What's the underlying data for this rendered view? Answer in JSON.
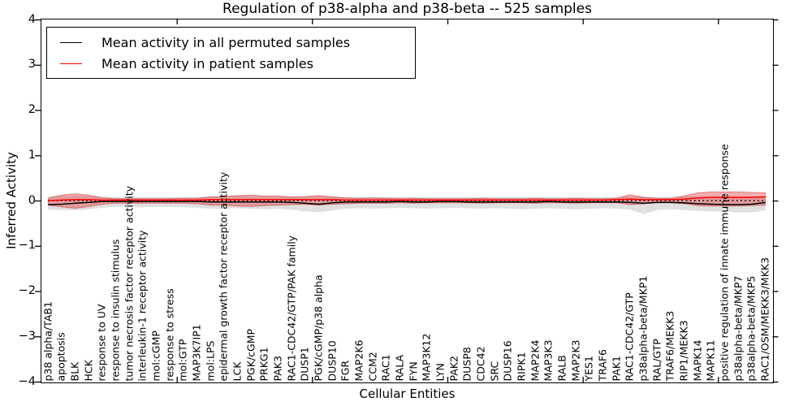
{
  "legend": {
    "entries": [
      {
        "label": "Mean activity in all permuted samples",
        "color": "#000000"
      },
      {
        "label": "Mean activity in patient samples",
        "color": "#ff0000"
      }
    ]
  },
  "chart_data": {
    "type": "line",
    "title": "Regulation of p38-alpha and p38-beta -- 525 samples",
    "xlabel": "Cellular Entities",
    "ylabel": "Inferred Activity",
    "ylim": [
      -4,
      4
    ],
    "yticks": [
      4,
      3,
      2,
      1,
      0,
      -1,
      -2,
      -3,
      -4
    ],
    "ytick_labels": [
      "4",
      "3",
      "2",
      "1",
      "0",
      "−1",
      "−2",
      "−3",
      "−4"
    ],
    "xtick_marks_at": [
      10,
      20,
      30,
      40,
      50
    ],
    "grid": false,
    "legend_position": "upper left",
    "categories": [
      "p38 alpha/TAB1",
      "apoptosis",
      "BLK",
      "HCK",
      "response to UV",
      "response to insulin stimulus",
      "tumor necrosis factor receptor activity",
      "interleukin-1 receptor activity",
      "mol:cGMP",
      "response to stress",
      "mol:GTP",
      "MAP3K7IP1",
      "mol:LPS",
      "epidermal growth factor receptor activity",
      "LCK",
      "PGK/cGMP",
      "PRKG1",
      "PAK3",
      "RAC1-CDC42/GTP/PAK family",
      "DUSP1",
      "PGK/cGMP/p38 alpha",
      "DUSP10",
      "FGR",
      "MAP2K6",
      "CCM2",
      "RAC1",
      "RALA",
      "FYN",
      "MAP3K12",
      "LYN",
      "PAK2",
      "DUSP8",
      "CDC42",
      "SRC",
      "DUSP16",
      "RIPK1",
      "MAP2K4",
      "MAP3K3",
      "RALB",
      "MAP2K3",
      "YES1",
      "TRAF6",
      "PAK1",
      "RAC1-CDC42/GTP",
      "p38alpha-beta/MKP1",
      "RAL/GTP",
      "TRAF6/MEKK3",
      "RIP1/MEKK3",
      "MAPK14",
      "MAPK11",
      "positive regulation of innate immune response",
      "p38alpha-beta/MKP7",
      "p38alpha-beta/MKP5",
      "RAC1/OSM/MEKK3/MKK3"
    ],
    "zero_line": {
      "y": 0,
      "style": "dotted",
      "color": "#000000"
    },
    "series": [
      {
        "name": "Mean activity in all permuted samples",
        "color": "#000000",
        "band_color": "rgba(0,0,0,0.12)",
        "band_edge": "none",
        "values": [
          -0.09,
          -0.08,
          -0.06,
          -0.04,
          -0.02,
          -0.02,
          -0.02,
          -0.02,
          -0.02,
          -0.02,
          -0.02,
          -0.02,
          -0.03,
          -0.03,
          -0.03,
          -0.03,
          -0.03,
          -0.03,
          -0.04,
          -0.06,
          -0.08,
          -0.05,
          -0.03,
          -0.03,
          -0.03,
          -0.03,
          -0.02,
          -0.03,
          -0.03,
          -0.02,
          -0.02,
          -0.03,
          -0.03,
          -0.03,
          -0.03,
          -0.03,
          -0.03,
          -0.02,
          -0.03,
          -0.03,
          -0.03,
          -0.03,
          -0.03,
          -0.04,
          -0.06,
          -0.04,
          -0.04,
          -0.05,
          -0.07,
          -0.08,
          -0.09,
          -0.09,
          -0.08,
          -0.04
        ],
        "band_upper": [
          0.1,
          0.1,
          0.11,
          0.1,
          0.09,
          0.08,
          0.08,
          0.08,
          0.08,
          0.08,
          0.08,
          0.08,
          0.09,
          0.09,
          0.1,
          0.1,
          0.09,
          0.09,
          0.08,
          0.09,
          0.1,
          0.09,
          0.08,
          0.08,
          0.08,
          0.08,
          0.08,
          0.08,
          0.08,
          0.08,
          0.08,
          0.08,
          0.08,
          0.08,
          0.08,
          0.08,
          0.08,
          0.08,
          0.08,
          0.08,
          0.08,
          0.08,
          0.08,
          0.09,
          0.09,
          0.08,
          0.08,
          0.09,
          0.1,
          0.1,
          0.1,
          0.1,
          0.1,
          0.1
        ],
        "band_lower": [
          -0.2,
          -0.21,
          -0.22,
          -0.19,
          -0.16,
          -0.14,
          -0.14,
          -0.15,
          -0.14,
          -0.14,
          -0.15,
          -0.16,
          -0.18,
          -0.18,
          -0.17,
          -0.18,
          -0.19,
          -0.18,
          -0.2,
          -0.24,
          -0.26,
          -0.22,
          -0.18,
          -0.17,
          -0.18,
          -0.17,
          -0.16,
          -0.17,
          -0.18,
          -0.17,
          -0.16,
          -0.17,
          -0.18,
          -0.17,
          -0.18,
          -0.19,
          -0.18,
          -0.17,
          -0.18,
          -0.19,
          -0.18,
          -0.17,
          -0.18,
          -0.2,
          -0.3,
          -0.21,
          -0.19,
          -0.21,
          -0.23,
          -0.24,
          -0.25,
          -0.26,
          -0.26,
          -0.22
        ]
      },
      {
        "name": "Mean activity in patient samples",
        "color": "#ff0000",
        "band_color": "rgba(228,26,28,0.35)",
        "band_edge": "rgba(190,15,15,0.45)",
        "values": [
          0.0,
          0.01,
          0.02,
          0.02,
          0.01,
          0.01,
          0.01,
          0.01,
          0.01,
          0.01,
          0.01,
          0.01,
          0.02,
          0.02,
          0.02,
          0.02,
          0.02,
          0.02,
          0.02,
          0.02,
          0.02,
          0.02,
          0.01,
          0.01,
          0.01,
          0.01,
          0.01,
          0.01,
          0.01,
          0.01,
          0.01,
          0.01,
          0.01,
          0.01,
          0.01,
          0.01,
          0.01,
          0.01,
          0.01,
          0.01,
          0.01,
          0.01,
          0.02,
          0.03,
          0.02,
          0.02,
          0.02,
          0.03,
          0.06,
          0.07,
          0.07,
          0.07,
          0.07,
          0.08
        ],
        "band_upper": [
          0.05,
          0.12,
          0.15,
          0.12,
          0.06,
          0.04,
          0.04,
          0.04,
          0.04,
          0.04,
          0.05,
          0.05,
          0.08,
          0.09,
          0.11,
          0.12,
          0.1,
          0.1,
          0.08,
          0.09,
          0.11,
          0.08,
          0.06,
          0.05,
          0.06,
          0.05,
          0.04,
          0.05,
          0.04,
          0.04,
          0.04,
          0.04,
          0.05,
          0.04,
          0.04,
          0.04,
          0.05,
          0.04,
          0.04,
          0.05,
          0.04,
          0.04,
          0.05,
          0.13,
          0.07,
          0.05,
          0.05,
          0.1,
          0.17,
          0.19,
          0.19,
          0.19,
          0.18,
          0.17
        ],
        "band_lower": [
          -0.1,
          -0.14,
          -0.17,
          -0.13,
          -0.08,
          -0.06,
          -0.06,
          -0.06,
          -0.06,
          -0.06,
          -0.06,
          -0.07,
          -0.1,
          -0.1,
          -0.12,
          -0.13,
          -0.11,
          -0.1,
          -0.09,
          -0.08,
          -0.1,
          -0.08,
          -0.07,
          -0.06,
          -0.06,
          -0.06,
          -0.05,
          -0.06,
          -0.05,
          -0.05,
          -0.05,
          -0.05,
          -0.06,
          -0.05,
          -0.05,
          -0.05,
          -0.06,
          -0.05,
          -0.05,
          -0.06,
          -0.05,
          -0.05,
          -0.05,
          -0.09,
          -0.07,
          -0.05,
          -0.05,
          -0.07,
          -0.11,
          -0.12,
          -0.12,
          -0.12,
          -0.11,
          -0.1
        ]
      }
    ]
  }
}
